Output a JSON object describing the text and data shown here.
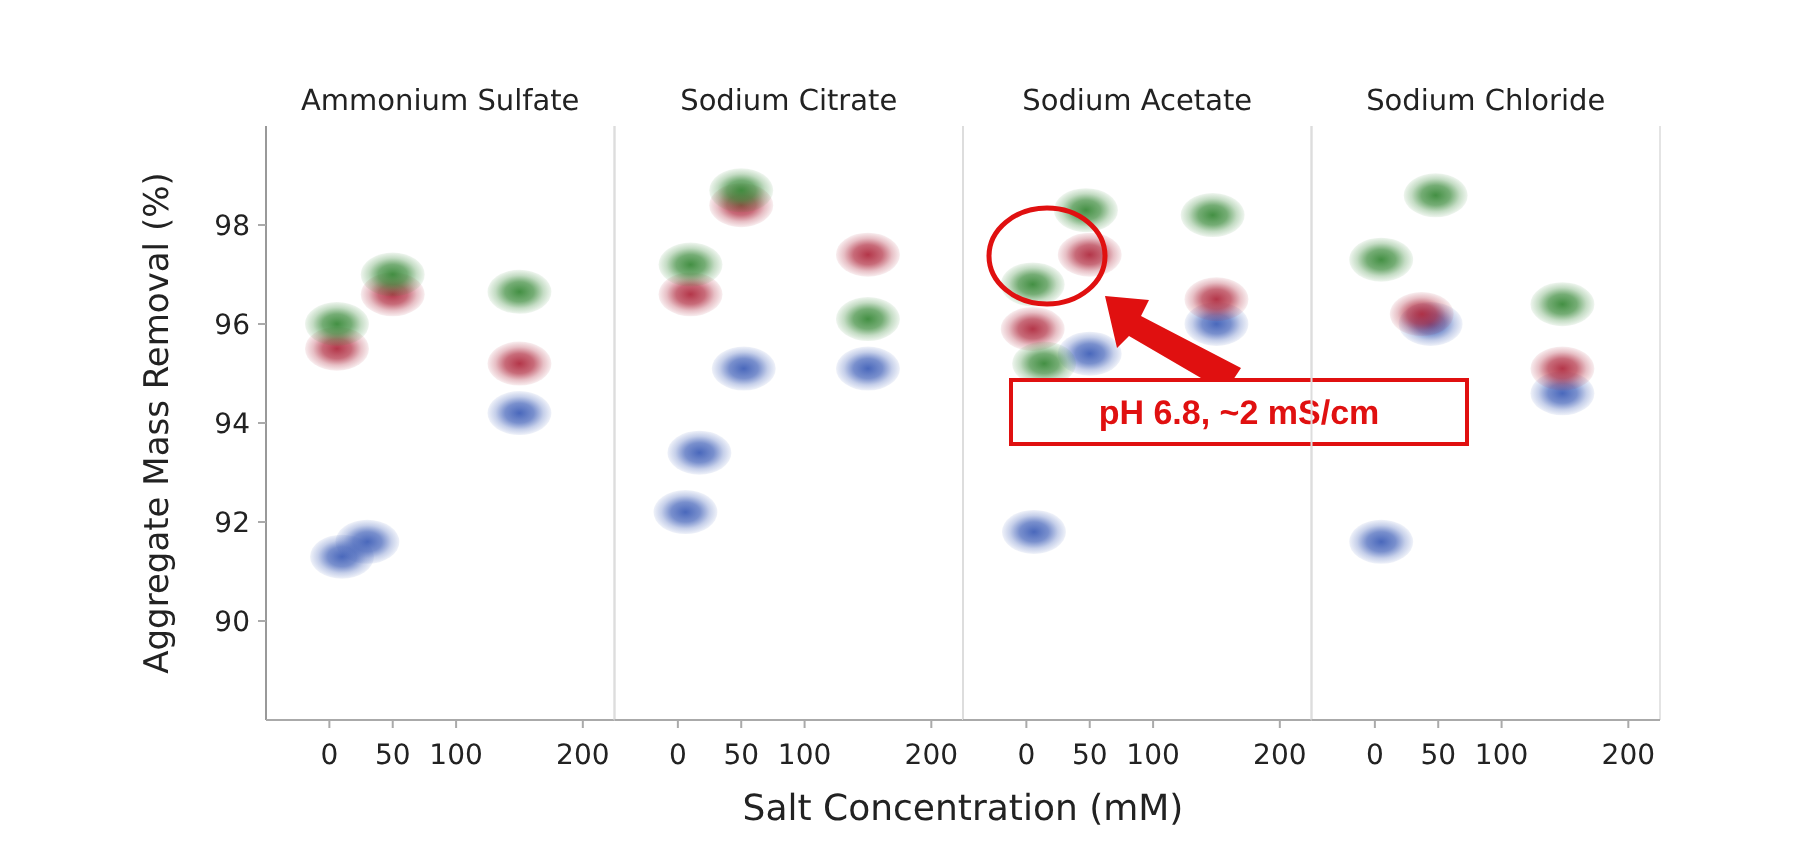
{
  "chart_data": [
    {
      "type": "scatter",
      "title": "Ammonium Sulfate",
      "ylabel": "Aggregate Mass Removal (%)",
      "xlabel": "Salt Concentration (mM)",
      "xlim": [
        -50,
        225
      ],
      "xticks": [
        0,
        50,
        100,
        200
      ],
      "ylim": [
        88,
        100
      ],
      "yticks": [
        90,
        92,
        94,
        96,
        98
      ],
      "grid": false,
      "marker": "circle",
      "series": [
        {
          "color": "#4060b8",
          "x": [
            10,
            30,
            150
          ],
          "values": [
            91.3,
            91.6,
            94.2
          ]
        },
        {
          "color": "#b02c40",
          "x": [
            6,
            50,
            150
          ],
          "values": [
            95.5,
            96.6,
            95.2
          ]
        },
        {
          "color": "#3a8a3a",
          "x": [
            6,
            50,
            150
          ],
          "values": [
            96.0,
            97.0,
            96.65
          ]
        }
      ]
    },
    {
      "type": "scatter",
      "title": "Sodium Citrate",
      "xlim": [
        -50,
        225
      ],
      "xticks": [
        0,
        50,
        100,
        200
      ],
      "ylim": [
        88,
        100
      ],
      "tick_labels": "x",
      "grid": false,
      "marker": "circle",
      "series": [
        {
          "color": "#4060b8",
          "x": [
            6,
            17,
            52,
            150
          ],
          "values": [
            92.2,
            93.4,
            95.1,
            95.1
          ]
        },
        {
          "color": "#b02c40",
          "x": [
            10,
            50,
            150
          ],
          "values": [
            96.6,
            98.4,
            97.4
          ]
        },
        {
          "color": "#3a8a3a",
          "x": [
            10,
            50,
            150
          ],
          "values": [
            97.2,
            98.7,
            96.1
          ]
        }
      ]
    },
    {
      "type": "scatter",
      "title": "Sodium Acetate",
      "xlim": [
        -50,
        225
      ],
      "xticks": [
        0,
        50,
        100,
        200
      ],
      "ylim": [
        88,
        100
      ],
      "tick_labels": "x",
      "grid": false,
      "marker": "circle",
      "annotations": [
        "pH 6.8, ~2 mS/cm"
      ],
      "series": [
        {
          "color": "#4060b8",
          "x": [
            6,
            50,
            150
          ],
          "values": [
            91.8,
            95.4,
            96.0
          ]
        },
        {
          "color": "#b02c40",
          "x": [
            5,
            50,
            150
          ],
          "values": [
            95.9,
            97.4,
            96.5
          ]
        },
        {
          "color": "#3a8a3a",
          "x": [
            5,
            14,
            47,
            147
          ],
          "values": [
            96.8,
            95.2,
            98.3,
            98.2
          ]
        }
      ]
    },
    {
      "type": "scatter",
      "title": "Sodium Chloride",
      "xlim": [
        -50,
        225
      ],
      "xticks": [
        0,
        50,
        100,
        200
      ],
      "ylim": [
        88,
        100
      ],
      "tick_labels": "x",
      "grid": false,
      "marker": "circle",
      "series": [
        {
          "color": "#4060b8",
          "x": [
            5,
            44,
            148
          ],
          "values": [
            91.6,
            96.0,
            94.6
          ]
        },
        {
          "color": "#b02c40",
          "x": [
            37,
            148
          ],
          "values": [
            96.2,
            95.1
          ]
        },
        {
          "color": "#3a8a3a",
          "x": [
            5,
            48,
            148
          ],
          "values": [
            97.3,
            98.6,
            96.4
          ]
        }
      ]
    }
  ]
}
